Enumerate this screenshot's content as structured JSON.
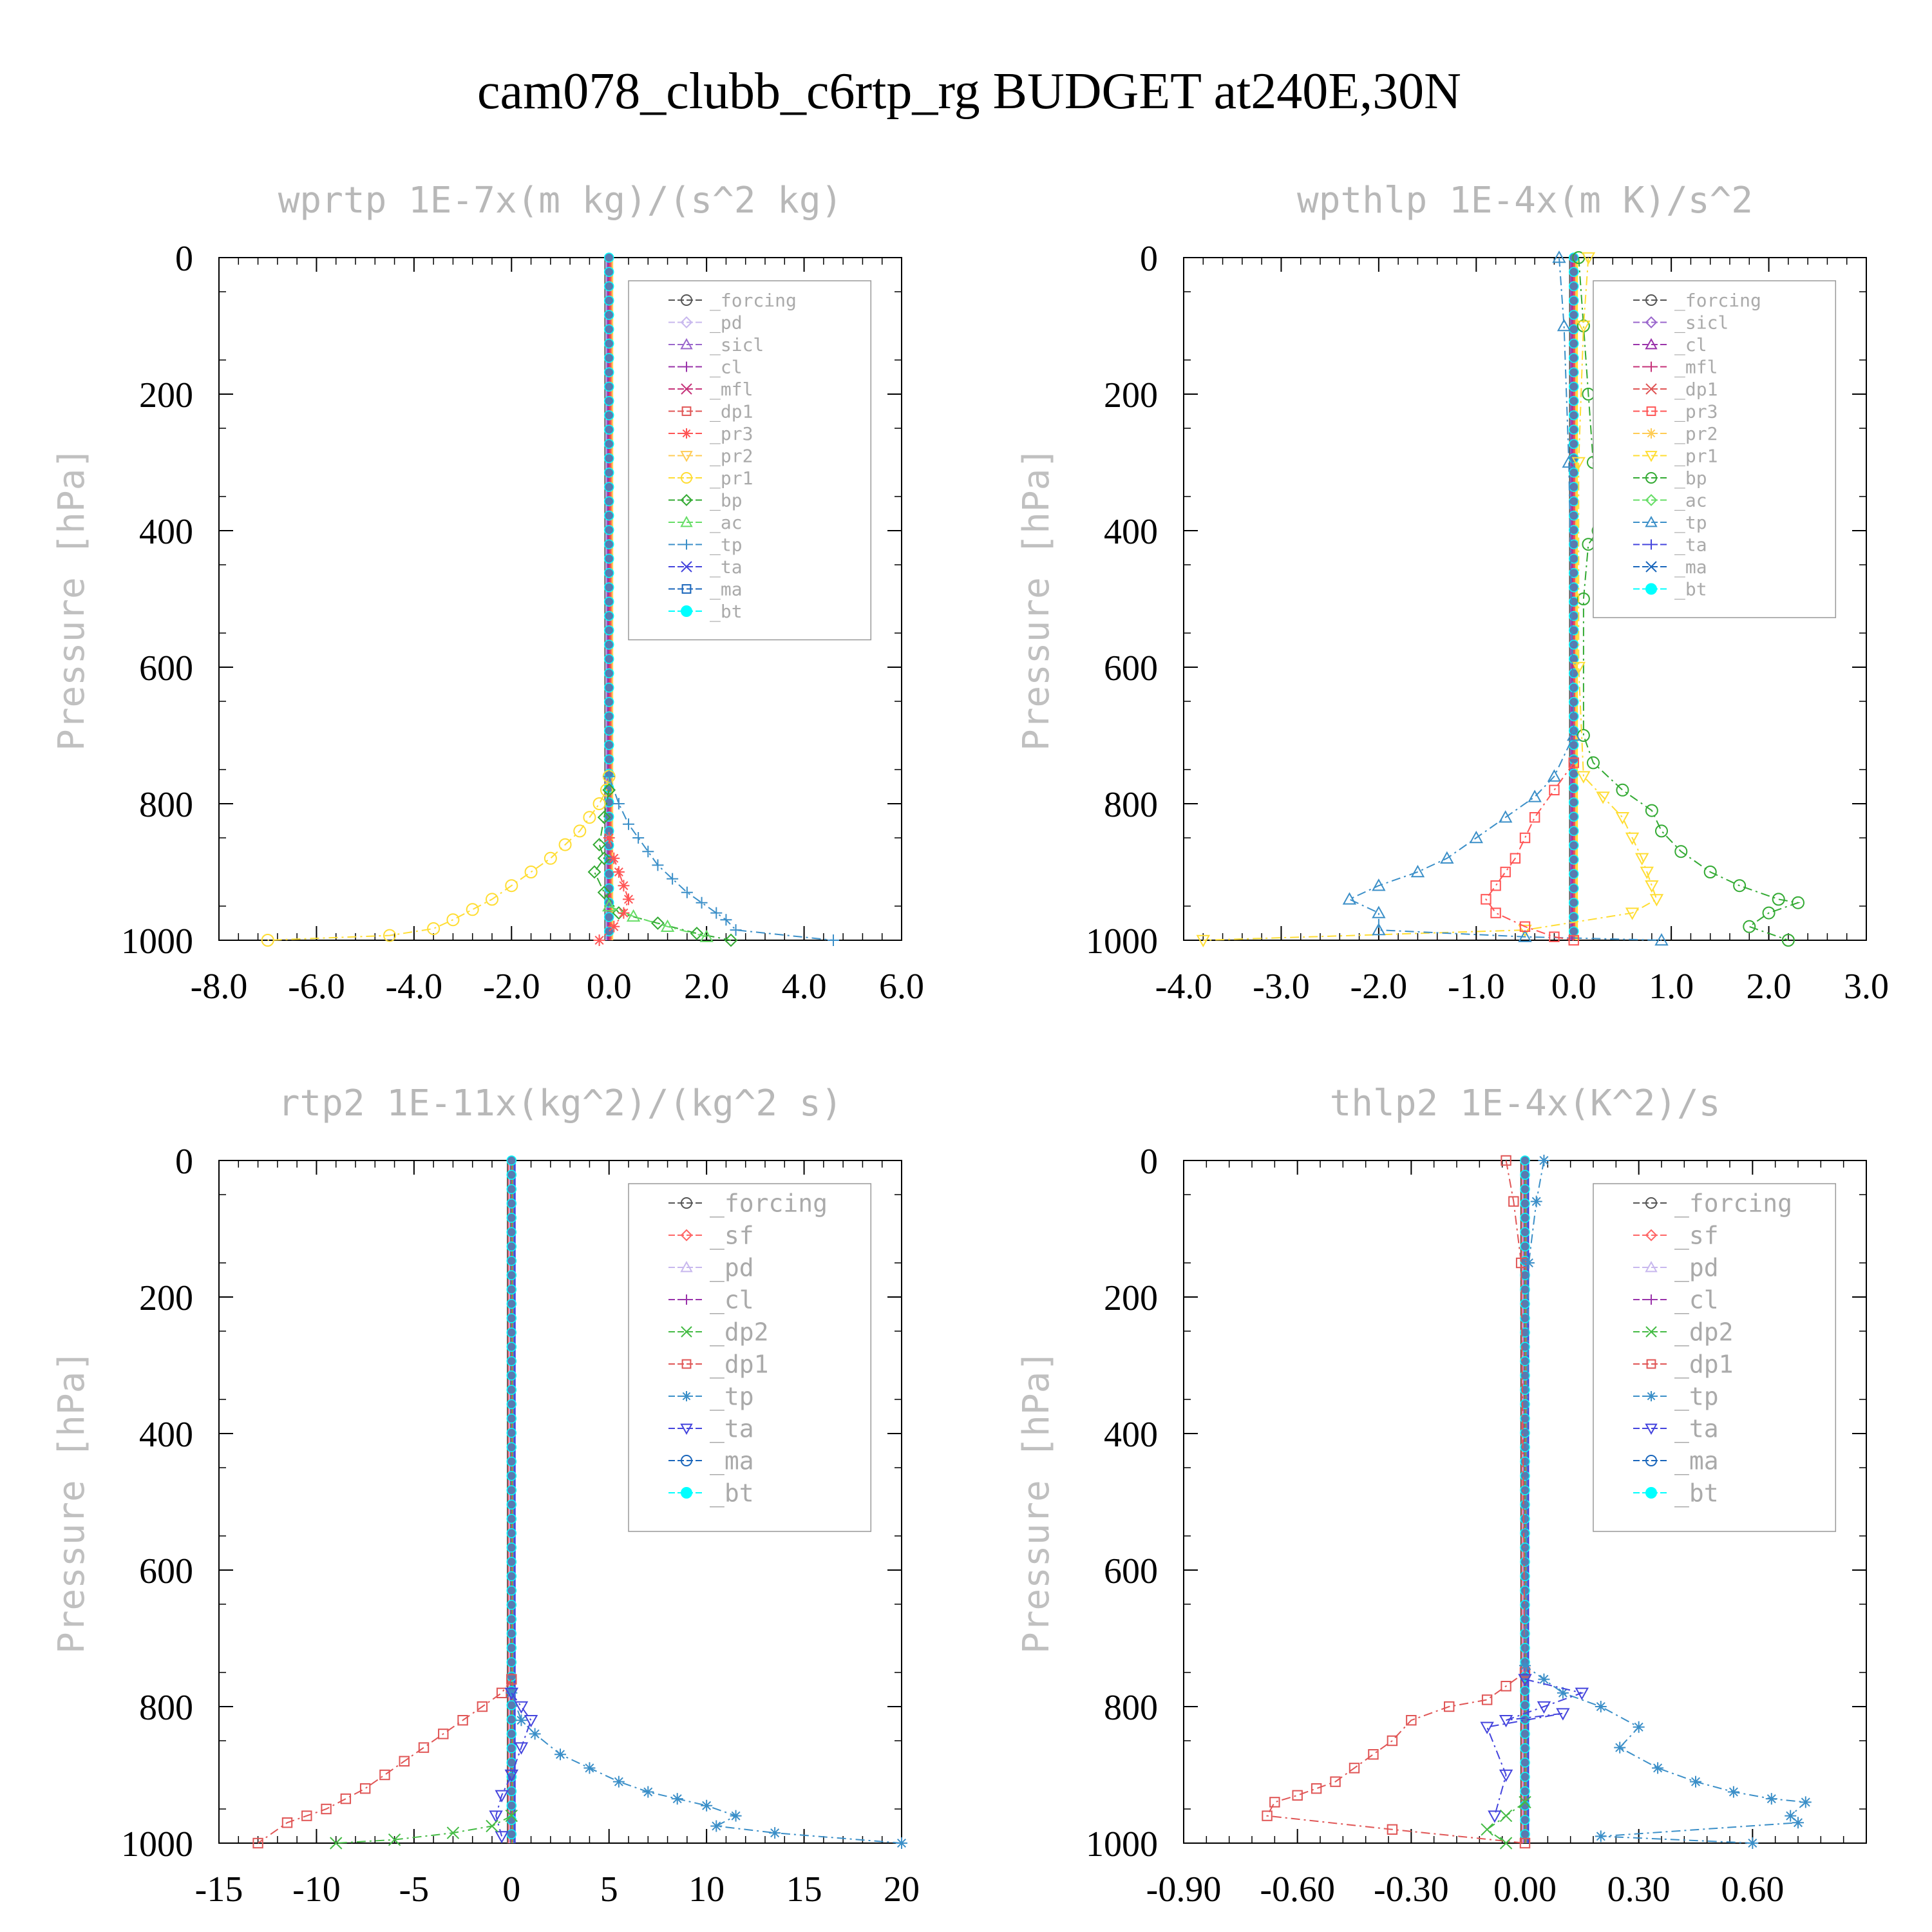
{
  "title": "cam078_clubb_c6rtp_rg  BUDGET at240E,30N",
  "ylabel": "Pressure [hPa]",
  "colors": {
    "forcing": "#555555",
    "pd": "#c8b8ee",
    "sicl": "#9a66cc",
    "cl": "#9a33aa",
    "mfl": "#c6337a",
    "dp1": "#e05555",
    "pr3": "#ff5555",
    "pr2": "#ffcc55",
    "pr1": "#ffdd33",
    "bp": "#33aa33",
    "ac": "#66dd66",
    "tp": "#3b8fc8",
    "ta": "#4444dd",
    "ma": "#1a66bb",
    "bt": "#00ffff",
    "sf": "#ff6666",
    "dp2": "#44bb44"
  },
  "chart_data": [
    {
      "type": "line",
      "title": "wprtp  1E-7x(m kg)/(s^2 kg)",
      "ylabel": "Pressure [hPa]",
      "ylim": [
        1000,
        0
      ],
      "yticks": [
        "0",
        "200",
        "400",
        "600",
        "800",
        "1000"
      ],
      "xlim": [
        -8,
        6
      ],
      "xticks": [
        "-8.0",
        "-6.0",
        "-4.0",
        "-2.0",
        "0.0",
        "2.0",
        "4.0",
        "6.0"
      ],
      "legend_position": "top-right",
      "legend": [
        "_forcing",
        "_pd",
        "_sicl",
        "_cl",
        "_mfl",
        "_dp1",
        "_pr3",
        "_pr2",
        "_pr1",
        "_bp",
        "_ac",
        "_tp",
        "_ta",
        "_ma",
        "_bt"
      ],
      "series": [
        {
          "name": "_pr1",
          "x": [
            0,
            -0.05,
            -0.2,
            -0.4,
            -0.6,
            -0.9,
            -1.2,
            -1.6,
            -2.0,
            -2.4,
            -2.8,
            -3.2,
            -3.6,
            -4.5,
            -7.0
          ],
          "y": [
            760,
            780,
            800,
            820,
            840,
            860,
            880,
            900,
            920,
            940,
            955,
            970,
            983,
            993,
            1000
          ]
        },
        {
          "name": "_tp",
          "x": [
            0,
            0.2,
            0.4,
            0.6,
            0.8,
            1.0,
            1.3,
            1.6,
            1.9,
            2.2,
            2.4,
            2.6,
            4.6
          ],
          "y": [
            760,
            800,
            830,
            850,
            870,
            890,
            910,
            930,
            945,
            960,
            970,
            985,
            1000
          ]
        },
        {
          "name": "_bp",
          "x": [
            0,
            -0.1,
            -0.2,
            -0.1,
            -0.3,
            -0.1,
            0.2,
            1.0,
            1.8,
            2.5
          ],
          "y": [
            780,
            820,
            860,
            880,
            900,
            930,
            960,
            975,
            990,
            1000
          ]
        },
        {
          "name": "_pr3",
          "x": [
            0,
            0.1,
            0.2,
            0.3,
            0.4,
            0.3,
            0.1,
            -0.2
          ],
          "y": [
            850,
            880,
            900,
            920,
            940,
            960,
            980,
            1000
          ]
        },
        {
          "name": "_ac",
          "x": [
            0,
            0.5,
            1.2,
            2.0
          ],
          "y": [
            950,
            965,
            980,
            995
          ]
        }
      ]
    },
    {
      "type": "line",
      "title": "wpthlp  1E-4x(m K)/s^2",
      "ylabel": "Pressure [hPa]",
      "ylim": [
        1000,
        0
      ],
      "yticks": [
        "0",
        "200",
        "400",
        "600",
        "800",
        "1000"
      ],
      "xlim": [
        -4,
        3
      ],
      "xticks": [
        "-4.0",
        "-3.0",
        "-2.0",
        "-1.0",
        "0.0",
        "1.0",
        "2.0",
        "3.0"
      ],
      "legend_position": "top-right",
      "legend": [
        "_forcing",
        "_sicl",
        "_cl",
        "_mfl",
        "_dp1",
        "_pr3",
        "_pr2",
        "_pr1",
        "_bp",
        "_ac",
        "_tp",
        "_ta",
        "_ma",
        "_bt"
      ],
      "series": [
        {
          "name": "_bp",
          "x": [
            0.05,
            0.1,
            0.15,
            0.2,
            0.25,
            0.15,
            0.1,
            0.1,
            0.2,
            0.5,
            0.8,
            0.9,
            1.1,
            1.4,
            1.7,
            2.1,
            2.3,
            2.0,
            1.8,
            2.2
          ],
          "y": [
            0,
            100,
            200,
            300,
            400,
            420,
            500,
            700,
            740,
            780,
            810,
            840,
            870,
            900,
            920,
            940,
            945,
            960,
            980,
            1000
          ]
        },
        {
          "name": "_pr1",
          "x": [
            0.15,
            0.1,
            0.05,
            0.05,
            0.1,
            0.3,
            0.5,
            0.6,
            0.7,
            0.75,
            0.8,
            0.85,
            0.6,
            -0.5,
            -3.8
          ],
          "y": [
            0,
            100,
            300,
            600,
            760,
            790,
            820,
            850,
            880,
            900,
            920,
            940,
            960,
            985,
            1000
          ]
        },
        {
          "name": "_tp",
          "x": [
            -0.15,
            -0.1,
            -0.05,
            0,
            -0.2,
            -0.4,
            -0.7,
            -1.0,
            -1.3,
            -1.6,
            -2.0,
            -2.3,
            -2.0,
            -2.0,
            -0.5,
            0.9
          ],
          "y": [
            0,
            100,
            300,
            700,
            760,
            790,
            820,
            850,
            880,
            900,
            920,
            940,
            960,
            985,
            995,
            1000
          ]
        },
        {
          "name": "_pr3",
          "x": [
            0,
            -0.2,
            -0.4,
            -0.5,
            -0.6,
            -0.7,
            -0.8,
            -0.9,
            -0.8,
            -0.5,
            -0.2,
            0
          ],
          "y": [
            740,
            780,
            820,
            850,
            880,
            900,
            920,
            940,
            960,
            980,
            995,
            1000
          ]
        }
      ]
    },
    {
      "type": "line",
      "title": "rtp2  1E-11x(kg^2)/(kg^2 s)",
      "ylabel": "Pressure [hPa]",
      "ylim": [
        1000,
        0
      ],
      "yticks": [
        "0",
        "200",
        "400",
        "600",
        "800",
        "1000"
      ],
      "xlim": [
        -15,
        20
      ],
      "xticks": [
        "-15",
        "-10",
        "-5",
        "0",
        "5",
        "10",
        "15",
        "20"
      ],
      "legend_position": "top-right",
      "legend": [
        "_forcing",
        "_sf",
        "_pd",
        "_cl",
        "_dp2",
        "_dp1",
        "_tp",
        "_ta",
        "_ma",
        "_bt"
      ],
      "series": [
        {
          "name": "_dp1",
          "x": [
            0,
            -0.5,
            -1.5,
            -2.5,
            -3.5,
            -4.5,
            -5.5,
            -6.5,
            -7.5,
            -8.5,
            -9.5,
            -10.5,
            -11.5,
            -13
          ],
          "y": [
            760,
            780,
            800,
            820,
            840,
            860,
            880,
            900,
            920,
            935,
            950,
            960,
            970,
            1000
          ]
        },
        {
          "name": "_tp",
          "x": [
            0,
            0.5,
            1.2,
            2.5,
            4.0,
            5.5,
            7.0,
            8.5,
            10.0,
            11.5,
            10.5,
            13.5,
            20
          ],
          "y": [
            780,
            820,
            840,
            870,
            890,
            910,
            925,
            935,
            945,
            960,
            975,
            985,
            1000
          ]
        },
        {
          "name": "_ta",
          "x": [
            0,
            0.5,
            1.0,
            0.5,
            0,
            -0.5,
            -0.8,
            -0.5
          ],
          "y": [
            780,
            800,
            820,
            860,
            900,
            930,
            960,
            990
          ]
        },
        {
          "name": "_dp2",
          "x": [
            0,
            -1,
            -3,
            -6,
            -9
          ],
          "y": [
            960,
            975,
            985,
            995,
            1000
          ]
        }
      ]
    },
    {
      "type": "line",
      "title": "thlp2  1E-4x(K^2)/s",
      "ylabel": "Pressure [hPa]",
      "ylim": [
        1000,
        0
      ],
      "yticks": [
        "0",
        "200",
        "400",
        "600",
        "800",
        "1000"
      ],
      "xlim": [
        -0.9,
        0.9
      ],
      "xticks": [
        "-0.90",
        "-0.60",
        "-0.30",
        "0.00",
        "0.30",
        "0.60"
      ],
      "legend_position": "top-right",
      "legend": [
        "_forcing",
        "_sf",
        "_pd",
        "_cl",
        "_dp2",
        "_dp1",
        "_tp",
        "_ta",
        "_ma",
        "_bt"
      ],
      "series": [
        {
          "name": "_dp1",
          "x": [
            -0.05,
            -0.03,
            -0.01,
            0,
            -0.05,
            -0.1,
            -0.2,
            -0.3,
            -0.35,
            -0.4,
            -0.45,
            -0.5,
            -0.55,
            -0.6,
            -0.66,
            -0.68,
            -0.35,
            0
          ],
          "y": [
            0,
            60,
            150,
            750,
            770,
            790,
            800,
            820,
            850,
            870,
            890,
            910,
            920,
            930,
            940,
            960,
            980,
            1000
          ]
        },
        {
          "name": "_tp",
          "x": [
            0.05,
            0.03,
            0.01,
            0,
            0.05,
            0.1,
            0.2,
            0.3,
            0.25,
            0.35,
            0.45,
            0.55,
            0.65,
            0.74,
            0.7,
            0.72,
            0.2,
            0.6
          ],
          "y": [
            0,
            60,
            150,
            740,
            760,
            780,
            800,
            830,
            860,
            890,
            910,
            925,
            935,
            940,
            960,
            970,
            990,
            1000
          ]
        },
        {
          "name": "_ta",
          "x": [
            0,
            0.15,
            0.05,
            -0.05,
            0.1,
            -0.1,
            -0.05,
            -0.08
          ],
          "y": [
            760,
            780,
            800,
            820,
            810,
            830,
            900,
            960
          ]
        },
        {
          "name": "_dp2",
          "x": [
            0,
            -0.05,
            -0.1,
            -0.05
          ],
          "y": [
            940,
            960,
            980,
            1000
          ]
        }
      ]
    }
  ]
}
